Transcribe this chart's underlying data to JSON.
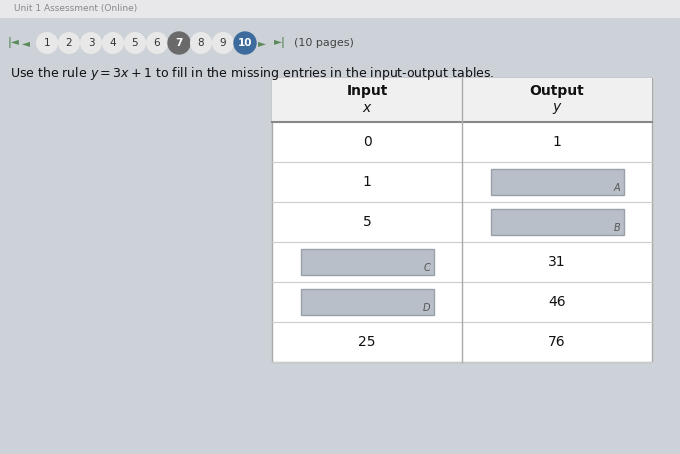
{
  "title_bar": "Unit 1 Assessment (Online)",
  "page_numbers": [
    "1",
    "2",
    "3",
    "4",
    "5",
    "6",
    "7",
    "8",
    "9",
    "10"
  ],
  "current_page": "10",
  "circled_page": "7",
  "pages_label": "(10 pages)",
  "instruction": "Use the rule $y = 3x + 1$ to fill in the missing entries in the input\\u2011output tables.",
  "rows": [
    {
      "x": "0",
      "y": "1",
      "x_box": false,
      "y_box": false
    },
    {
      "x": "1",
      "y": "A",
      "x_box": false,
      "y_box": true
    },
    {
      "x": "5",
      "y": "B",
      "x_box": false,
      "y_box": true
    },
    {
      "x": "C",
      "y": "31",
      "x_box": true,
      "y_box": false
    },
    {
      "x": "D",
      "y": "46",
      "x_box": true,
      "y_box": false
    },
    {
      "x": "25",
      "y": "76",
      "x_box": false,
      "y_box": false
    }
  ],
  "bg_color": "#cdd2d8",
  "table_bg": "#ffffff",
  "header_bg": "#f0f0f0",
  "box_fill": "#b8bfc8",
  "box_edge": "#9aa0a8",
  "box_label_color": "#555555",
  "nav_color_10_bg": "#3d6b9e",
  "nav_color_7_bg": "#6a6a6a",
  "nav_color_default_bg": "#e8e8e8",
  "title_bar_bg": "#f5f5f5",
  "title_bar_text_color": "#888888"
}
